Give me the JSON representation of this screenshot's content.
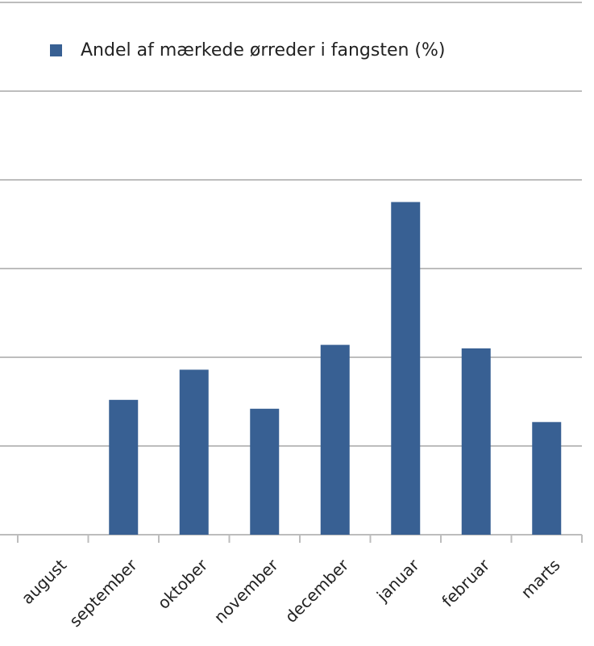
{
  "chart_data": {
    "type": "bar",
    "categories": [
      "august",
      "september",
      "oktober",
      "november",
      "december",
      "januar",
      "februar",
      "marts"
    ],
    "series": [
      {
        "name": "Andel af mærkede ørreder i fangsten (%)",
        "color": "#386093",
        "values": [
          null,
          1.52,
          1.86,
          1.42,
          2.14,
          3.75,
          2.1,
          1.27
        ]
      }
    ],
    "ylim": [
      0,
      6
    ],
    "yticks": [
      0,
      1,
      2,
      3,
      4,
      5,
      6
    ],
    "grid": true,
    "legend": "top-left"
  }
}
